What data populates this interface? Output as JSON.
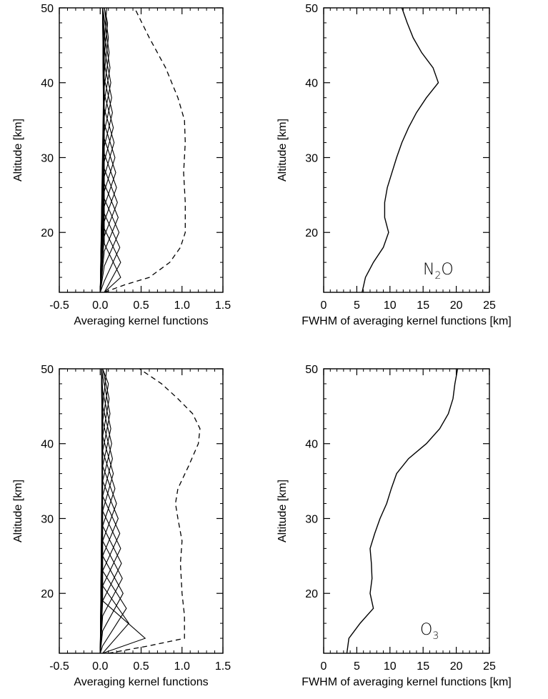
{
  "chart_data": [
    {
      "id": "n2o-ak",
      "type": "line",
      "xlabel": "Averaging kernel functions",
      "ylabel": "Altitude [km]",
      "xlim": [
        -0.5,
        1.5
      ],
      "ylim": [
        12,
        50
      ],
      "xticks": [
        -0.5,
        0.0,
        0.5,
        1.0,
        1.5
      ],
      "xtick_labels": [
        "-0.5",
        "0.0",
        "0.5",
        "1.0",
        "1.5"
      ],
      "yticks": [
        20,
        30,
        40,
        50
      ],
      "ytick_labels": [
        "20",
        "30",
        "40",
        "50"
      ],
      "kernel_peak_altitudes": [
        14,
        16,
        18,
        20,
        22,
        24,
        26,
        28,
        30,
        32,
        34,
        36,
        38,
        40,
        42,
        44,
        46,
        48,
        50
      ],
      "kernel_peak_values": [
        0.25,
        0.25,
        0.24,
        0.23,
        0.22,
        0.21,
        0.2,
        0.19,
        0.18,
        0.17,
        0.16,
        0.15,
        0.14,
        0.13,
        0.12,
        0.11,
        0.1,
        0.09,
        0.08
      ],
      "kernel_half_width_km": 4.5,
      "kernel_base_offset": 0.05,
      "sum_curve": {
        "style": "dashed",
        "points": [
          [
            0.05,
            12
          ],
          [
            0.3,
            13
          ],
          [
            0.6,
            14
          ],
          [
            0.85,
            16
          ],
          [
            0.98,
            18
          ],
          [
            1.04,
            20
          ],
          [
            1.04,
            24
          ],
          [
            1.02,
            28
          ],
          [
            1.04,
            32
          ],
          [
            1.03,
            35
          ],
          [
            0.95,
            38
          ],
          [
            0.8,
            42
          ],
          [
            0.6,
            46
          ],
          [
            0.42,
            50
          ]
        ]
      }
    },
    {
      "id": "n2o-fwhm",
      "type": "line",
      "xlabel": "FWHM of averaging kernel functions [km]",
      "ylabel": "Altitude [km]",
      "xlim": [
        0,
        25
      ],
      "ylim": [
        12,
        50
      ],
      "xticks": [
        0,
        5,
        10,
        15,
        20,
        25
      ],
      "xtick_labels": [
        "0",
        "5",
        "10",
        "15",
        "20",
        "25"
      ],
      "yticks": [
        20,
        30,
        40,
        50
      ],
      "ytick_labels": [
        "20",
        "30",
        "40",
        "50"
      ],
      "annotation_main": "N",
      "annotation_sub": "2",
      "annotation_end": "O",
      "series": [
        {
          "points": [
            [
              5.8,
              12
            ],
            [
              6.3,
              14
            ],
            [
              7.5,
              16
            ],
            [
              9.0,
              18
            ],
            [
              9.8,
              20
            ],
            [
              9.2,
              22
            ],
            [
              9.2,
              24
            ],
            [
              9.6,
              26
            ],
            [
              10.3,
              28
            ],
            [
              11.0,
              30
            ],
            [
              11.8,
              32
            ],
            [
              12.8,
              34
            ],
            [
              14.0,
              36
            ],
            [
              15.5,
              38
            ],
            [
              17.3,
              40
            ],
            [
              16.5,
              42
            ],
            [
              14.8,
              44
            ],
            [
              13.5,
              46
            ],
            [
              12.6,
              48
            ],
            [
              11.8,
              50
            ]
          ]
        }
      ]
    },
    {
      "id": "o3-ak",
      "type": "line",
      "xlabel": "Averaging kernel functions",
      "ylabel": "Altitude [km]",
      "xlim": [
        -0.5,
        1.5
      ],
      "ylim": [
        12,
        50
      ],
      "xticks": [
        -0.5,
        0.0,
        0.5,
        1.0,
        1.5
      ],
      "xtick_labels": [
        "-0.5",
        "0.0",
        "0.5",
        "1.0",
        "1.5"
      ],
      "yticks": [
        20,
        30,
        40,
        50
      ],
      "ytick_labels": [
        "20",
        "30",
        "40",
        "50"
      ],
      "kernel_peak_altitudes": [
        14,
        16,
        18,
        20,
        22,
        24,
        26,
        28,
        30,
        32,
        34,
        36,
        38,
        40,
        42,
        44,
        46,
        48,
        50
      ],
      "kernel_peak_values": [
        0.55,
        0.35,
        0.32,
        0.28,
        0.27,
        0.26,
        0.25,
        0.24,
        0.22,
        0.2,
        0.18,
        0.16,
        0.15,
        0.14,
        0.13,
        0.12,
        0.11,
        0.1,
        0.08
      ],
      "kernel_half_width_km": 5,
      "kernel_base_offset": 0.03,
      "sum_curve": {
        "style": "dashed",
        "points": [
          [
            0.1,
            12
          ],
          [
            0.6,
            13
          ],
          [
            1.03,
            14
          ],
          [
            1.03,
            17
          ],
          [
            1.0,
            20
          ],
          [
            0.98,
            24
          ],
          [
            1.0,
            27
          ],
          [
            0.95,
            30
          ],
          [
            0.92,
            32
          ],
          [
            0.95,
            34
          ],
          [
            1.08,
            37
          ],
          [
            1.2,
            40
          ],
          [
            1.22,
            42
          ],
          [
            1.13,
            44
          ],
          [
            0.95,
            46
          ],
          [
            0.75,
            48
          ],
          [
            0.48,
            50
          ]
        ]
      }
    },
    {
      "id": "o3-fwhm",
      "type": "line",
      "xlabel": "FWHM of averaging kernel functions [km]",
      "ylabel": "Altitude [km]",
      "xlim": [
        0,
        25
      ],
      "ylim": [
        12,
        50
      ],
      "xticks": [
        0,
        5,
        10,
        15,
        20,
        25
      ],
      "xtick_labels": [
        "0",
        "5",
        "10",
        "15",
        "20",
        "25"
      ],
      "yticks": [
        20,
        30,
        40,
        50
      ],
      "ytick_labels": [
        "20",
        "30",
        "40",
        "50"
      ],
      "annotation_main": "O",
      "annotation_sub": "3",
      "annotation_end": "",
      "series": [
        {
          "points": [
            [
              3.5,
              12
            ],
            [
              3.8,
              14
            ],
            [
              5.5,
              16
            ],
            [
              7.5,
              18
            ],
            [
              7.0,
              20
            ],
            [
              7.3,
              22
            ],
            [
              7.2,
              24
            ],
            [
              7.0,
              26
            ],
            [
              7.7,
              28
            ],
            [
              8.5,
              30
            ],
            [
              9.5,
              32
            ],
            [
              10.2,
              34
            ],
            [
              11.0,
              36
            ],
            [
              12.8,
              38
            ],
            [
              15.5,
              40
            ],
            [
              17.5,
              42
            ],
            [
              18.8,
              44
            ],
            [
              19.5,
              46
            ],
            [
              19.8,
              48
            ],
            [
              20.2,
              50
            ]
          ]
        }
      ]
    }
  ]
}
